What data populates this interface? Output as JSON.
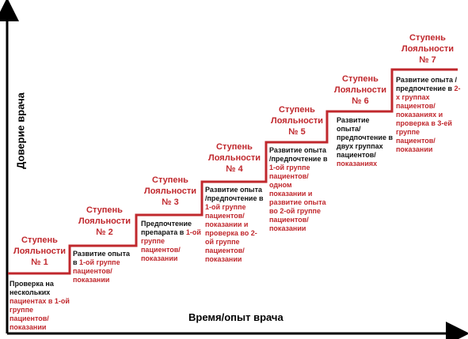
{
  "axes": {
    "y_label": "Доверие врача",
    "x_label": "Время/опыт врача"
  },
  "colors": {
    "accent": "#c0282d",
    "text": "#111111",
    "axis": "#000000"
  },
  "steps": [
    {
      "title": "Ступень Лояльности № 1",
      "desc": [
        {
          "text": "Проверка на нескольких ",
          "red": false
        },
        {
          "text": "пациентах в 1-ой группе пациентов/ показании",
          "red": true
        }
      ]
    },
    {
      "title": "Ступень Лояльности № 2",
      "desc": [
        {
          "text": "Развитие опыта в ",
          "red": false
        },
        {
          "text": "1-ой группе пациентов/ показании",
          "red": true
        }
      ]
    },
    {
      "title": "Ступень Лояльности № 3",
      "desc": [
        {
          "text": "Предпочтение препарата в ",
          "red": false
        },
        {
          "text": "1-ой группе пациентов/ показании",
          "red": true
        }
      ]
    },
    {
      "title": "Ступень Лояльности № 4",
      "desc": [
        {
          "text": "Развитие опыта /предпочтение в ",
          "red": false
        },
        {
          "text": "1-ой группе пациентов/ показании и проверка во 2-ой группе пациентов/ показании",
          "red": true
        }
      ]
    },
    {
      "title": "Ступень Лояльности № 5",
      "desc": [
        {
          "text": "Развитие опыта /предпочтение в ",
          "red": false
        },
        {
          "text": "1-ой группе пациентов/ одном показании и развитие опыта во 2-ой группе пациентов/ показании",
          "red": true
        }
      ]
    },
    {
      "title": "Ступень Лояльности № 6",
      "desc": [
        {
          "text": "Развитие опыта/ предпочтение в двух группах пациентов/ ",
          "red": false
        },
        {
          "text": "показаниях",
          "red": true
        }
      ]
    },
    {
      "title": "Ступень Лояльности № 7",
      "desc": [
        {
          "text": "Развитие опыта /предпочтение в ",
          "red": false
        },
        {
          "text": "2-х группах пациентов/ показаниях и проверка в 3-ей группе пациентов/ показании",
          "red": true
        }
      ]
    }
  ]
}
